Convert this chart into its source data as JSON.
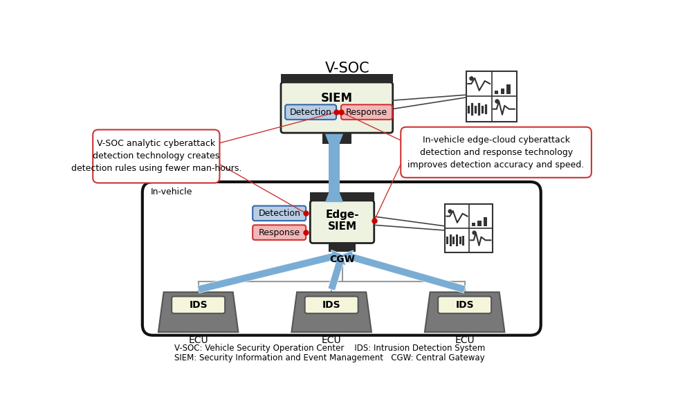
{
  "title": "V-SOC",
  "bg_color": "#ffffff",
  "footnote_line1": "V-SOC: Vehicle Security Operation Center    IDS: Intrusion Detection System",
  "footnote_line2": "SIEM: Security Information and Event Management   CGW: Central Gateway",
  "left_annotation": "V-SOC analytic cyberattack\ndetection technology creates\ndetection rules using fewer man-hours.",
  "right_annotation": "In-vehicle edge-cloud cyberattack\ndetection and response technology\nimproves detection accuracy and speed.",
  "siem_label": "SIEM",
  "edge_siem_label": "Edge-\nSIEM",
  "cgw_label": "CGW",
  "in_vehicle_label": "In-vehicle",
  "detection_label": "Detection",
  "response_label": "Response",
  "ids_label": "IDS",
  "ecu_label": "ECU",
  "siem_box_color": "#eef2e0",
  "detection_box_color": "#b8cce4",
  "response_box_color": "#f2b8b8",
  "arrow_color": "#7aadd4",
  "arrow_color_dark": "#5588bb",
  "dark_bar": "#2a2a2a",
  "ecu_gray": "#787878",
  "ecu_gray_dark": "#555555",
  "ids_cream": "#f5f5dc",
  "ann_red": "#cc3333",
  "dot_red": "#cc0000",
  "icon_dark": "#333333",
  "line_gray": "#999999"
}
